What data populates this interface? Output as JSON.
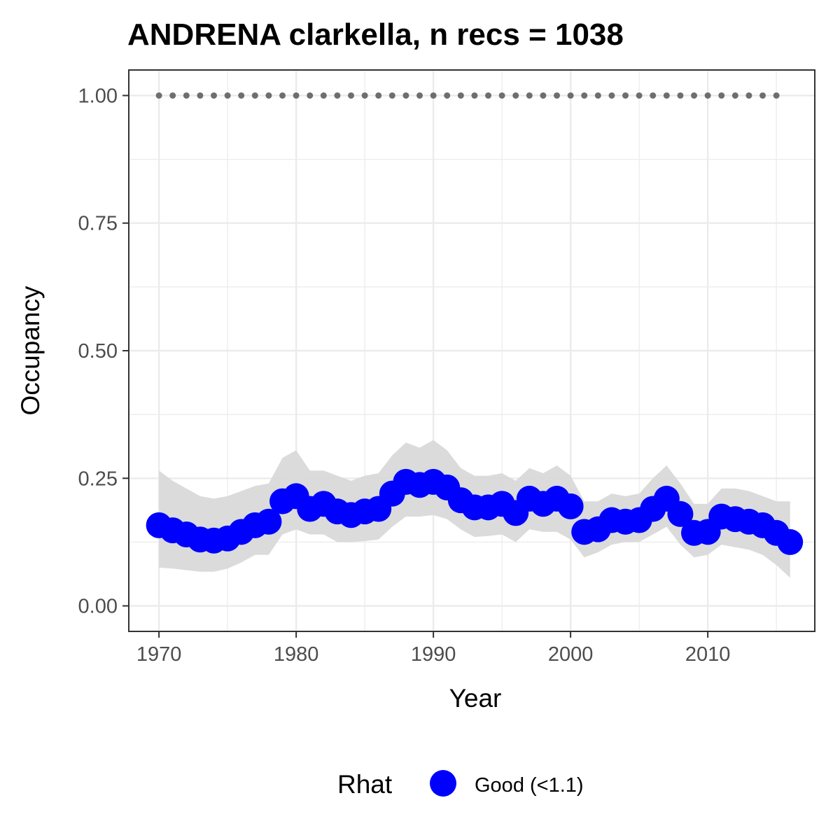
{
  "chart_data": {
    "type": "line",
    "title": "ANDRENA clarkella, n recs = 1038",
    "xlabel": "Year",
    "ylabel": "Occupancy",
    "xlim": [
      1967.8,
      2017.8
    ],
    "ylim": [
      -0.05,
      1.05
    ],
    "x_ticks": [
      1970,
      1980,
      1990,
      2000,
      2010
    ],
    "x_tick_labels": [
      "1970",
      "1980",
      "1990",
      "2000",
      "2010"
    ],
    "y_ticks": [
      0,
      0.25,
      0.5,
      0.75,
      1.0
    ],
    "y_tick_labels": [
      "0.00",
      "0.25",
      "0.50",
      "0.75",
      "1.00"
    ],
    "grid": true,
    "legend": {
      "title": "Rhat",
      "position": "bottom",
      "entries": [
        {
          "label": "Good (<1.1)",
          "color": "#0000ff"
        }
      ]
    },
    "colors": {
      "points": "#0000ff",
      "ribbon": "#d9d9d9",
      "reference": "#6e6e6e",
      "grid": "#ebebeb",
      "panel_border": "#333333"
    },
    "reference_line": {
      "x": [
        1970,
        1971,
        1972,
        1973,
        1974,
        1975,
        1976,
        1977,
        1978,
        1979,
        1980,
        1981,
        1982,
        1983,
        1984,
        1985,
        1986,
        1987,
        1988,
        1989,
        1990,
        1991,
        1992,
        1993,
        1994,
        1995,
        1996,
        1997,
        1998,
        1999,
        2000,
        2001,
        2002,
        2003,
        2004,
        2005,
        2006,
        2007,
        2008,
        2009,
        2010,
        2011,
        2012,
        2013,
        2014,
        2015
      ],
      "y": 1.0
    },
    "x": [
      1970,
      1971,
      1972,
      1973,
      1974,
      1975,
      1976,
      1977,
      1978,
      1979,
      1980,
      1981,
      1982,
      1983,
      1984,
      1985,
      1986,
      1987,
      1988,
      1989,
      1990,
      1991,
      1992,
      1993,
      1994,
      1995,
      1996,
      1997,
      1998,
      1999,
      2000,
      2001,
      2002,
      2003,
      2004,
      2005,
      2006,
      2007,
      2008,
      2009,
      2010,
      2011,
      2012,
      2013,
      2014,
      2015,
      2016
    ],
    "series": [
      {
        "values": [
          0.158,
          0.148,
          0.14,
          0.13,
          0.128,
          0.132,
          0.145,
          0.158,
          0.165,
          0.205,
          0.215,
          0.19,
          0.2,
          0.185,
          0.178,
          0.185,
          0.19,
          0.22,
          0.243,
          0.237,
          0.243,
          0.232,
          0.207,
          0.193,
          0.193,
          0.2,
          0.182,
          0.21,
          0.2,
          0.21,
          0.195,
          0.145,
          0.15,
          0.168,
          0.165,
          0.168,
          0.19,
          0.21,
          0.18,
          0.143,
          0.145,
          0.175,
          0.17,
          0.165,
          0.158,
          0.143,
          0.125
        ],
        "lower": [
          0.075,
          0.073,
          0.07,
          0.067,
          0.067,
          0.073,
          0.085,
          0.1,
          0.1,
          0.14,
          0.15,
          0.14,
          0.14,
          0.125,
          0.125,
          0.127,
          0.13,
          0.155,
          0.175,
          0.175,
          0.178,
          0.17,
          0.15,
          0.135,
          0.137,
          0.14,
          0.125,
          0.15,
          0.145,
          0.145,
          0.13,
          0.095,
          0.105,
          0.12,
          0.125,
          0.125,
          0.14,
          0.155,
          0.12,
          0.095,
          0.1,
          0.12,
          0.115,
          0.11,
          0.1,
          0.08,
          0.055
        ],
        "upper": [
          0.265,
          0.245,
          0.23,
          0.215,
          0.21,
          0.215,
          0.225,
          0.235,
          0.24,
          0.29,
          0.305,
          0.265,
          0.265,
          0.255,
          0.245,
          0.255,
          0.26,
          0.295,
          0.32,
          0.31,
          0.325,
          0.305,
          0.27,
          0.255,
          0.255,
          0.26,
          0.245,
          0.27,
          0.26,
          0.275,
          0.255,
          0.205,
          0.205,
          0.22,
          0.215,
          0.22,
          0.25,
          0.275,
          0.24,
          0.2,
          0.2,
          0.23,
          0.23,
          0.225,
          0.215,
          0.205,
          0.205
        ]
      }
    ]
  }
}
